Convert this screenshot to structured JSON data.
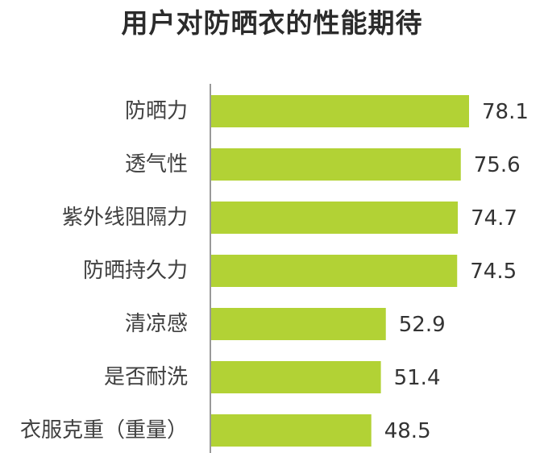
{
  "chart_data": {
    "type": "bar",
    "orientation": "horizontal",
    "title": "用户对防晒衣的性能期待",
    "categories": [
      "防晒力",
      "透气性",
      "紫外线阻隔力",
      "防晒持久力",
      "清凉感",
      "是否耐洗",
      "衣服克重（重量）"
    ],
    "values": [
      78.1,
      75.6,
      74.7,
      74.5,
      52.9,
      51.4,
      48.5
    ],
    "xlim": [
      0,
      78.1
    ],
    "bar_color": "#b2d235",
    "axis_color": "#999999",
    "grid": false,
    "legend": "none"
  }
}
